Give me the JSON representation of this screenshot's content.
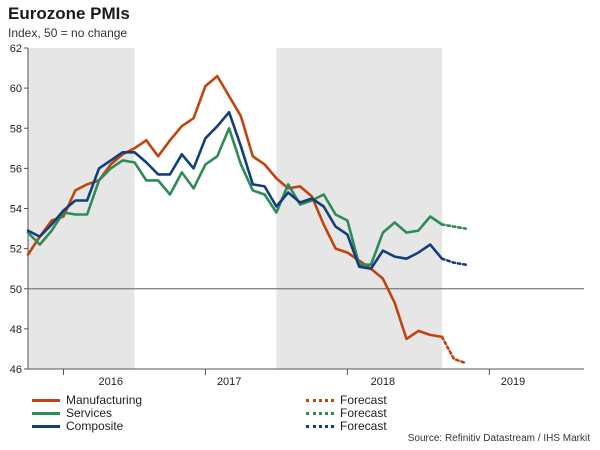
{
  "header": {
    "title": "Eurozone PMIs",
    "subtitle": "Index, 50 = no change"
  },
  "source": "Source: Refinitiv Datastream / IHS Markit",
  "colors": {
    "manufacturing": "#c1440e",
    "services": "#2e8b57",
    "composite": "#123f7a",
    "shade": "#e6e6e6",
    "refline": "#7a7a7a"
  },
  "chart_data": {
    "type": "line",
    "title": "Eurozone PMIs",
    "ylabel": "Index, 50 = no change",
    "ylim": [
      46,
      62
    ],
    "yticks": [
      46,
      48,
      50,
      52,
      54,
      56,
      58,
      60,
      62
    ],
    "reference_line": 50,
    "xlim": [
      2015.75,
      2019.6667
    ],
    "year_ticks": [
      2016,
      2017,
      2018,
      2019
    ],
    "year_labels": [
      {
        "label": "2016",
        "x": 2016.3333
      },
      {
        "label": "2017",
        "x": 2017.1667
      },
      {
        "label": "2018",
        "x": 2018.25
      },
      {
        "label": "2019",
        "x": 2019.1667
      }
    ],
    "shaded_periods": [
      [
        2015.75,
        2016.5
      ],
      [
        2017.5,
        2018.6667
      ]
    ],
    "x_start": 2015.75,
    "x_step": 0.08333,
    "series": [
      {
        "name": "Manufacturing",
        "color_key": "manufacturing",
        "values": [
          51.7,
          52.6,
          53.4,
          53.6,
          54.9,
          55.2,
          55.4,
          56.2,
          56.7,
          57.0,
          57.4,
          56.6,
          57.4,
          58.1,
          58.5,
          60.1,
          60.6,
          59.6,
          58.6,
          56.6,
          56.2,
          55.5,
          55.0,
          55.1,
          54.6,
          53.2,
          52.0,
          51.8,
          51.4,
          51.0,
          50.5,
          49.3,
          47.5,
          47.9,
          47.7,
          47.6
        ],
        "forecast": [
          47.6,
          46.5,
          46.3
        ],
        "forecast_label": "Forecast"
      },
      {
        "name": "Services",
        "color_key": "services",
        "values": [
          52.8,
          52.2,
          52.9,
          53.8,
          53.7,
          53.7,
          55.4,
          56.0,
          56.4,
          56.3,
          55.4,
          55.4,
          54.7,
          55.8,
          55.0,
          56.2,
          56.6,
          58.0,
          56.2,
          54.9,
          54.7,
          53.8,
          55.2,
          54.2,
          54.4,
          54.7,
          53.7,
          53.4,
          51.2,
          51.2,
          52.8,
          53.3,
          52.8,
          52.9,
          53.6,
          53.2
        ],
        "forecast": [
          53.2,
          53.1,
          53.0
        ],
        "forecast_label": "Forecast"
      },
      {
        "name": "Composite",
        "color_key": "composite",
        "values": [
          52.9,
          52.6,
          53.2,
          53.9,
          54.4,
          54.4,
          56.0,
          56.4,
          56.8,
          56.8,
          56.3,
          55.7,
          55.7,
          56.7,
          56.0,
          57.5,
          58.1,
          58.8,
          57.1,
          55.2,
          55.1,
          54.1,
          54.8,
          54.3,
          54.5,
          54.1,
          53.1,
          52.7,
          51.1,
          51.0,
          51.9,
          51.6,
          51.5,
          51.8,
          52.2,
          51.5
        ],
        "forecast": [
          51.5,
          51.3,
          51.2
        ],
        "forecast_label": "Forecast"
      }
    ]
  }
}
